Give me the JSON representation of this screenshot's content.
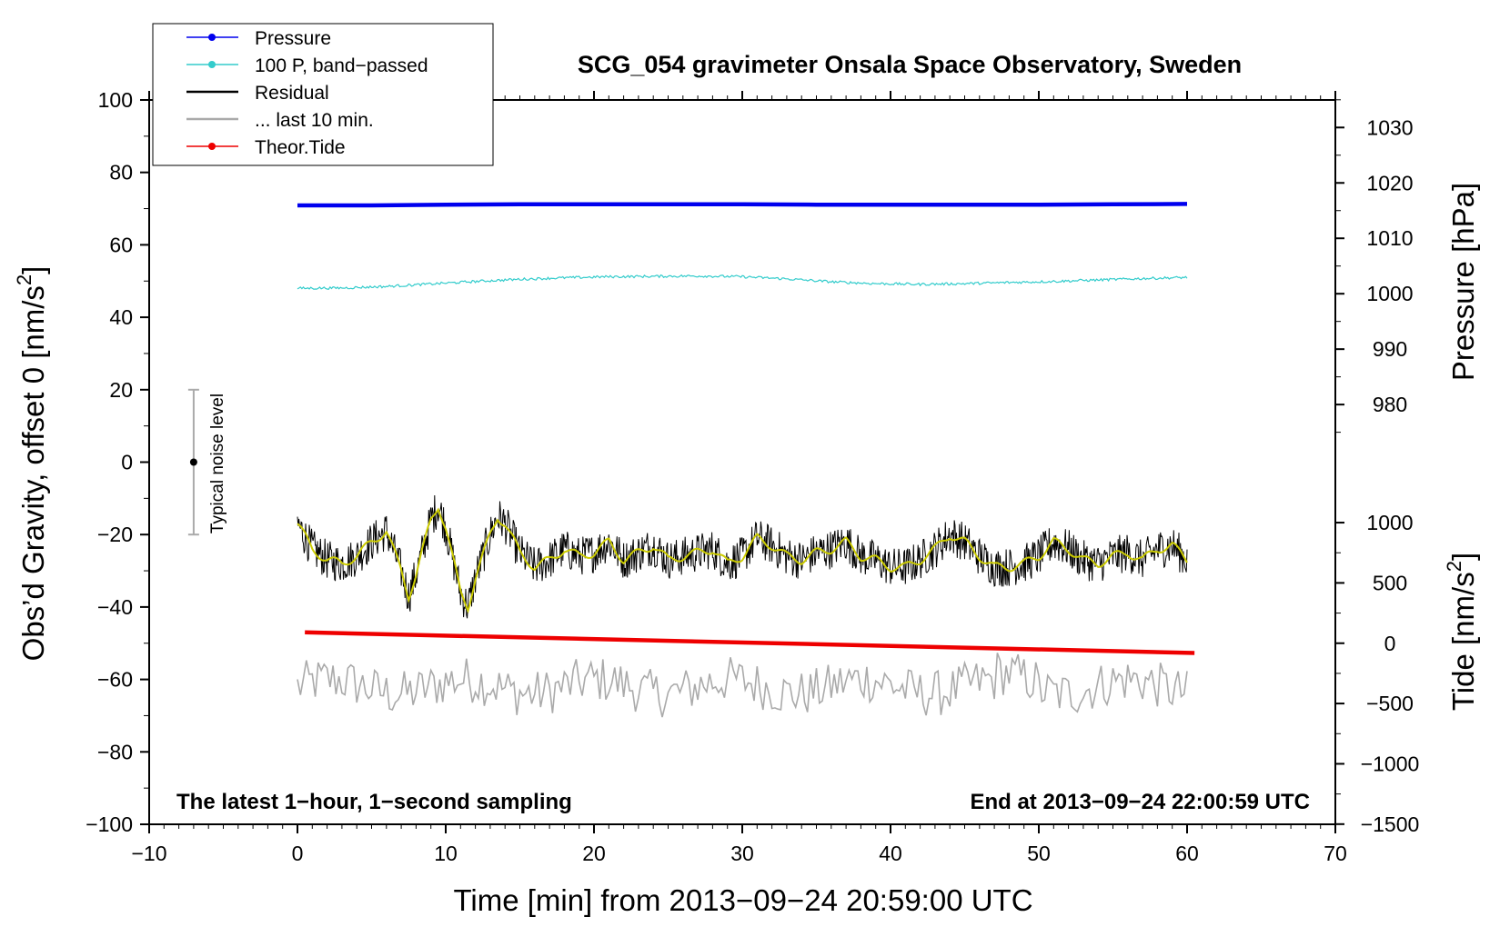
{
  "chart_data": {
    "type": "line",
    "title": "SCG_054 gravimeter Onsala Space Observatory, Sweden",
    "xlabel": "Time [min] from 2013−09−24 20:59:00 UTC",
    "ylabel_left": "Obs’d Gravity, offset 0 [nm/s",
    "ylabel_left_sup": "2",
    "ylabel_left_close": "]",
    "ylabel_right_pressure": "Pressure [hPa]",
    "ylabel_right_tide": "Tide [nm/s",
    "ylabel_right_tide_sup": "2",
    "ylabel_right_tide_close": "]",
    "xlim": [
      -10,
      70
    ],
    "ylim": [
      -100,
      100
    ],
    "x_ticks": [
      -10,
      0,
      10,
      20,
      30,
      40,
      50,
      60,
      70
    ],
    "x_tick_labels": [
      "−10",
      "0",
      "10",
      "20",
      "30",
      "40",
      "50",
      "60",
      "70"
    ],
    "y_ticks": [
      -100,
      -80,
      -60,
      -40,
      -20,
      0,
      20,
      40,
      60,
      80,
      100
    ],
    "y_tick_labels": [
      "−100",
      "−80",
      "−60",
      "−40",
      "−20",
      "0",
      "20",
      "40",
      "60",
      "80",
      "100"
    ],
    "pressure_axis": {
      "ticks": [
        980,
        990,
        1000,
        1010,
        1020,
        1030
      ],
      "tick_labels": [
        "980",
        "990",
        "1000",
        "1010",
        "1020",
        "1030"
      ],
      "gravity_at_1000": 46.5,
      "gravity_per_hPa": 1.53
    },
    "tide_axis": {
      "ticks": [
        -1500,
        -1000,
        -500,
        0,
        500,
        1000
      ],
      "tick_labels": [
        "−1500",
        "−1000",
        "−500",
        "0",
        "500",
        "1000"
      ],
      "gravity_at_0": -50.0,
      "gravity_per_unit": 0.0333
    },
    "series": [
      {
        "name": "Pressure",
        "color": "#0000ee",
        "x": [
          0,
          5,
          10,
          15,
          20,
          25,
          30,
          35,
          40,
          45,
          50,
          55,
          60
        ],
        "y": [
          70.9,
          70.9,
          71.1,
          71.2,
          71.2,
          71.2,
          71.2,
          71.1,
          71.1,
          71.1,
          71.1,
          71.2,
          71.3
        ]
      },
      {
        "name": "100 P, band−passed",
        "color": "#33cccc",
        "x": [
          0,
          3,
          6,
          9,
          12,
          15,
          18,
          21,
          24,
          27,
          30,
          33,
          36,
          39,
          42,
          45,
          48,
          51,
          54,
          57,
          60
        ],
        "y": [
          48.0,
          48.1,
          48.5,
          49.2,
          49.9,
          50.5,
          50.9,
          51.2,
          51.3,
          51.4,
          51.2,
          50.6,
          49.8,
          49.3,
          49.1,
          49.3,
          49.6,
          49.9,
          50.3,
          50.7,
          51.0
        ]
      },
      {
        "name": "Residual",
        "color": "#000000",
        "x": [
          0,
          1,
          2,
          3,
          4,
          5,
          6,
          7,
          7.5,
          8,
          9,
          9.5,
          10,
          11,
          11.5,
          12,
          13,
          13.5,
          14,
          15,
          16,
          17,
          18,
          19,
          20,
          21,
          22,
          23,
          24,
          25,
          26,
          27,
          28,
          29,
          30,
          31,
          32,
          33,
          34,
          35,
          36,
          37,
          38,
          39,
          40,
          41,
          42,
          43,
          44,
          45,
          46,
          47,
          48,
          49,
          50,
          51,
          52,
          53,
          54,
          55,
          56,
          57,
          58,
          59,
          60
        ],
        "y": [
          -17,
          -24,
          -27,
          -28,
          -26,
          -22,
          -19,
          -30,
          -37,
          -31,
          -16,
          -12,
          -18,
          -36,
          -40,
          -32,
          -20,
          -15,
          -17,
          -25,
          -29,
          -27,
          -24,
          -26,
          -25,
          -22,
          -27,
          -25,
          -23,
          -27,
          -26,
          -25,
          -24,
          -28,
          -26,
          -21,
          -23,
          -26,
          -27,
          -25,
          -24,
          -22,
          -26,
          -27,
          -29,
          -29,
          -27,
          -24,
          -20,
          -22,
          -26,
          -29,
          -29,
          -28,
          -26,
          -22,
          -24,
          -27,
          -28,
          -26,
          -25,
          -27,
          -24,
          -23,
          -27
        ]
      },
      {
        "name": "... last 10 min.",
        "color": "#aaaaaa"
      },
      {
        "name": "Theor.Tide",
        "color": "#ee0000",
        "x": [
          0.5,
          60.5
        ],
        "y": [
          -47.0,
          -52.7
        ]
      }
    ],
    "noise_bar": {
      "label": "Typical noise level",
      "x": -7,
      "center": 0,
      "low": -20,
      "high": 20
    },
    "notes": {
      "left": "The latest 1−hour, 1−second sampling",
      "right": "End at 2013−09−24 22:00:59 UTC"
    }
  },
  "legend": {
    "items": [
      {
        "label": "Pressure",
        "color": "#0000ee",
        "style": "line-dot"
      },
      {
        "label": "100 P, band−passed",
        "color": "#33cccc",
        "style": "line-dot"
      },
      {
        "label": "Residual",
        "color": "#000000",
        "style": "line"
      },
      {
        "label": "... last 10 min.",
        "color": "#aaaaaa",
        "style": "line"
      },
      {
        "label": "Theor.Tide",
        "color": "#ee0000",
        "style": "line-dot"
      }
    ]
  },
  "colors": {
    "smoothed_residual": "#cccc00",
    "noise_bar": "#aaaaaa"
  }
}
